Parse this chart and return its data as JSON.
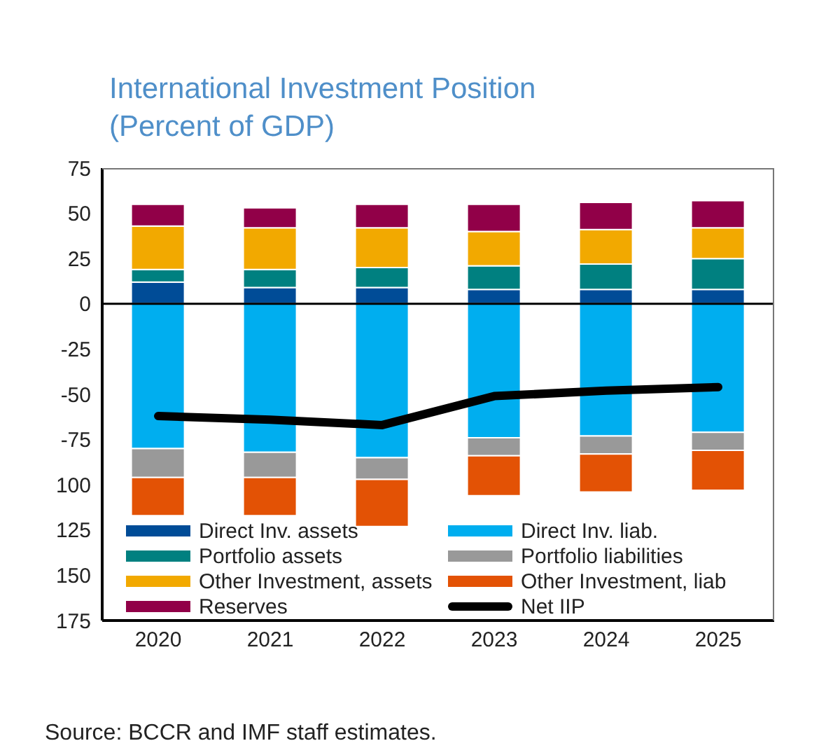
{
  "chart_data": {
    "type": "bar",
    "stacked": true,
    "title": "International Investment Position",
    "subtitle": "(Percent of GDP)",
    "categories": [
      "2020",
      "2021",
      "2022",
      "2023",
      "2024",
      "2025"
    ],
    "series": [
      {
        "name": "Direct Inv. assets",
        "color": "#004c97",
        "values": [
          12,
          9,
          9,
          8,
          8,
          8
        ]
      },
      {
        "name": "Direct Inv. liab.",
        "color": "#00aeef",
        "values": [
          -80,
          -82,
          -85,
          -74,
          -73,
          -71
        ]
      },
      {
        "name": "Portfolio assets",
        "color": "#008080",
        "values": [
          7,
          10,
          11,
          13,
          14,
          17
        ]
      },
      {
        "name": "Portfolio liabilities",
        "color": "#999999",
        "values": [
          -16,
          -14,
          -12,
          -10,
          -10,
          -10
        ]
      },
      {
        "name": "Other Investment, assets",
        "color": "#f2a900",
        "values": [
          24,
          23,
          22,
          19,
          19,
          17
        ]
      },
      {
        "name": "Other Investment, liab",
        "color": "#e35205",
        "values": [
          -21,
          -21,
          -26,
          -22,
          -21,
          -22
        ]
      },
      {
        "name": "Reserves",
        "color": "#910048",
        "values": [
          12,
          11,
          13,
          15,
          15,
          15
        ]
      },
      {
        "name": "Net IIP",
        "type": "line",
        "color": "#000000",
        "values": [
          -62,
          -64,
          -67,
          -51,
          -48,
          -46
        ]
      }
    ],
    "ylim": [
      -175,
      75
    ],
    "yticks": [
      75,
      50,
      25,
      0,
      -25,
      -50,
      -75,
      {
        "value": -100,
        "label": "100"
      },
      {
        "value": -125,
        "label": "125"
      },
      {
        "value": -150,
        "label": "150"
      },
      {
        "value": -175,
        "label": "175"
      }
    ],
    "ref_lines": [
      {
        "axis": "y",
        "value": 0,
        "color": "#000000"
      }
    ],
    "legend": "bottom",
    "annotations": [
      "Source: BCCR and IMF staff estimates."
    ]
  }
}
